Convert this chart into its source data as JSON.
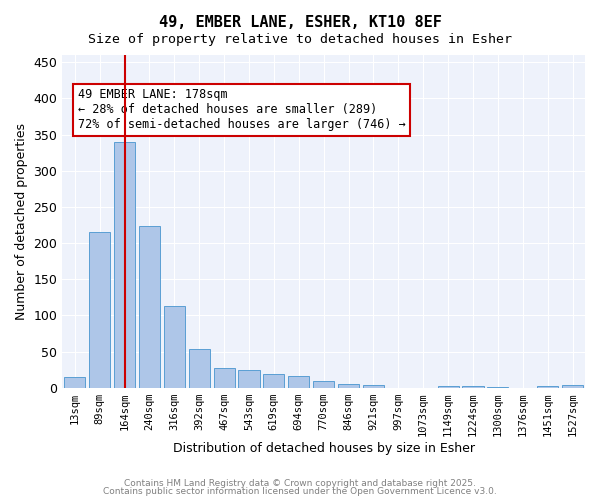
{
  "title1": "49, EMBER LANE, ESHER, KT10 8EF",
  "title2": "Size of property relative to detached houses in Esher",
  "xlabel": "Distribution of detached houses by size in Esher",
  "ylabel": "Number of detached properties",
  "bar_labels": [
    "13sqm",
    "89sqm",
    "164sqm",
    "240sqm",
    "316sqm",
    "392sqm",
    "467sqm",
    "543sqm",
    "619sqm",
    "694sqm",
    "770sqm",
    "846sqm",
    "921sqm",
    "997sqm",
    "1073sqm",
    "1149sqm",
    "1224sqm",
    "1300sqm",
    "1376sqm",
    "1451sqm",
    "1527sqm"
  ],
  "bar_values": [
    15,
    215,
    340,
    223,
    113,
    54,
    27,
    25,
    19,
    17,
    9,
    5,
    4,
    0,
    0,
    2,
    2,
    1,
    0,
    2,
    4
  ],
  "bar_color": "#aec6e8",
  "bar_edge_color": "#5a9fd4",
  "bg_color": "#eef2fb",
  "grid_color": "#ffffff",
  "vline_x": 2,
  "vline_color": "#cc0000",
  "annotation_text": "49 EMBER LANE: 178sqm\n← 28% of detached houses are smaller (289)\n72% of semi-detached houses are larger (746) →",
  "annotation_box_color": "#cc0000",
  "annotation_text_color": "#000000",
  "annotation_fontsize": 8.5,
  "ylim": [
    0,
    460
  ],
  "yticks": [
    0,
    50,
    100,
    150,
    200,
    250,
    300,
    350,
    400,
    450
  ],
  "footer1": "Contains HM Land Registry data © Crown copyright and database right 2025.",
  "footer2": "Contains public sector information licensed under the Open Government Licence v3.0."
}
